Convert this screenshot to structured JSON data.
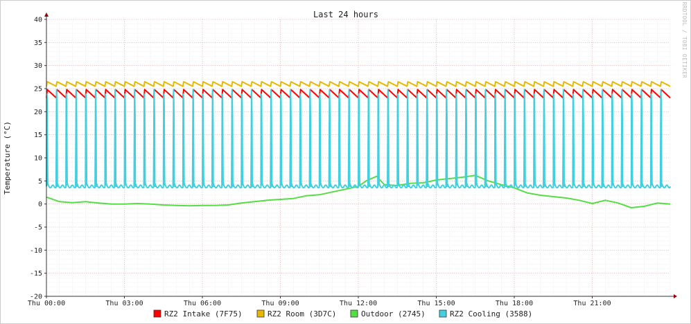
{
  "chart_data": {
    "type": "line",
    "title": "Last 24 hours",
    "ylabel": "Temperature (°C)",
    "xlabel": "",
    "watermark": "RRDTOOL / TOBI OETIKER",
    "ylim": [
      -20,
      40
    ],
    "yticks": [
      40,
      35,
      30,
      25,
      20,
      15,
      10,
      5,
      0,
      -5,
      -10,
      -15,
      -20
    ],
    "xlim_hours": [
      0,
      24
    ],
    "xticks": [
      {
        "hour": 0,
        "label": "Thu 00:00"
      },
      {
        "hour": 3,
        "label": "Thu 03:00"
      },
      {
        "hour": 6,
        "label": "Thu 06:00"
      },
      {
        "hour": 9,
        "label": "Thu 09:00"
      },
      {
        "hour": 12,
        "label": "Thu 12:00"
      },
      {
        "hour": 15,
        "label": "Thu 15:00"
      },
      {
        "hour": 18,
        "label": "Thu 18:00"
      },
      {
        "hour": 21,
        "label": "Thu 21:00"
      }
    ],
    "grid": true,
    "legend_position": "bottom",
    "series": [
      {
        "name": "RZ2 Intake (7F75)",
        "color": "#ff0000",
        "pattern": "cycle",
        "cycle_period_h": 0.375,
        "baseline": 23.0,
        "peak": 24.8
      },
      {
        "name": "RZ2 Room (3D7C)",
        "color": "#e8b800",
        "pattern": "cycle",
        "cycle_period_h": 0.375,
        "baseline": 25.5,
        "peak": 26.5
      },
      {
        "name": "Outdoor (2745)",
        "color": "#55dd44",
        "pattern": "points",
        "x": [
          0,
          0.5,
          1,
          1.5,
          2,
          2.5,
          3,
          3.5,
          4,
          4.5,
          5,
          5.5,
          6,
          6.5,
          7,
          7.5,
          8,
          8.5,
          9,
          9.5,
          10,
          10.5,
          11,
          11.5,
          12,
          12.3,
          12.7,
          13,
          13.5,
          14,
          14.5,
          15,
          15.5,
          16,
          16.5,
          17,
          17.5,
          18,
          18.5,
          19,
          19.5,
          20,
          20.5,
          21,
          21.5,
          22,
          22.5,
          23,
          23.5,
          24
        ],
        "y": [
          1.5,
          0.5,
          0.3,
          0.5,
          0.2,
          0.0,
          0.0,
          0.1,
          0.0,
          -0.2,
          -0.3,
          -0.4,
          -0.3,
          -0.3,
          -0.2,
          0.2,
          0.5,
          0.8,
          1.0,
          1.2,
          1.8,
          2.0,
          2.6,
          3.2,
          3.8,
          5.0,
          6.0,
          4.2,
          4.0,
          4.5,
          4.6,
          5.2,
          5.5,
          5.8,
          6.2,
          5.0,
          4.2,
          3.5,
          2.4,
          1.9,
          1.6,
          1.3,
          0.8,
          0.1,
          0.8,
          0.2,
          -0.8,
          -0.5,
          0.2,
          0.0
        ]
      },
      {
        "name": "RZ2 Cooling (3588)",
        "color": "#40d0e0",
        "pattern": "cycle",
        "cycle_period_h": 0.375,
        "baseline": 3.8,
        "peak": 25.5
      }
    ]
  }
}
